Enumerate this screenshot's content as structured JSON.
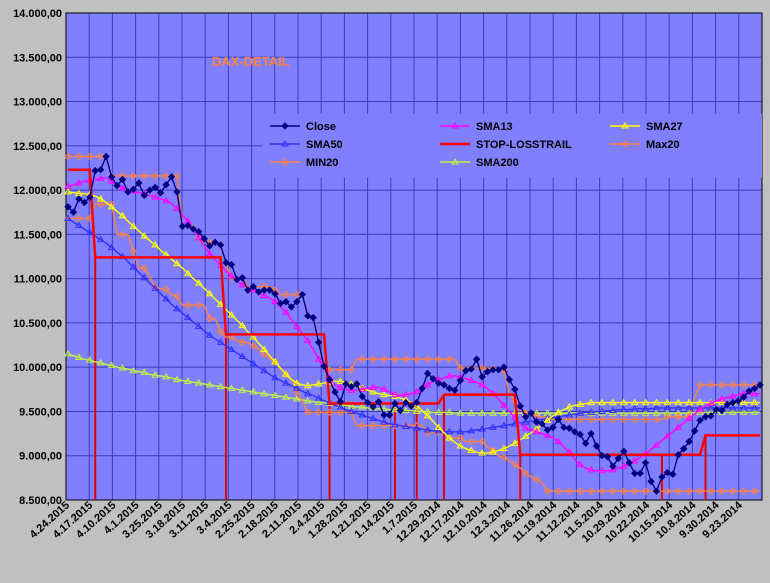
{
  "chart_data": {
    "type": "line",
    "title": "DAX-DETAIL",
    "colors": {
      "plot_bg": "#8080ff",
      "grid": "#3b3bbd",
      "outer_bg": "#c0c0c0",
      "title": "#ff8040"
    },
    "ylim": [
      8500,
      14000
    ],
    "yticks": [
      "8.500,00",
      "9.000,00",
      "9.500,00",
      "10.000,00",
      "10.500,00",
      "11.000,00",
      "11.500,00",
      "12.000,00",
      "12.500,00",
      "13.000,00",
      "13.500,00",
      "14.000,00"
    ],
    "ytick_values": [
      8500,
      9000,
      9500,
      10000,
      10500,
      11000,
      11500,
      12000,
      12500,
      13000,
      13500,
      14000
    ],
    "x_labels": [
      "4.24.2015",
      "4.17.2015",
      "4.10.2015",
      "4.1.2015",
      "3.25.2015",
      "3.18.2015",
      "3.11.2015",
      "3.4.2015",
      "2.25.2015",
      "2.18.2015",
      "2.11.2015",
      "2.4.2015",
      "1.28.2015",
      "1.21.2015",
      "1.14.2015",
      "1.7.2015",
      "12.29.2014",
      "12.17.2014",
      "12.10.2014",
      "12.3.2014",
      "11.26.2014",
      "11.19.2014",
      "11.12.2014",
      "11.5.2014",
      "10.29.2014",
      "10.22.2014",
      "10.15.2014",
      "10.8.2014",
      "9.30.2014",
      "9.23.2014"
    ],
    "legend_placement": "upper-right, inside plot",
    "series": [
      {
        "name": "Close",
        "color": "#000080",
        "marker": "diamond-filled",
        "values": [
          11810,
          11750,
          11900,
          11860,
          11920,
          12220,
          12230,
          12380,
          12150,
          12050,
          12120,
          11980,
          12010,
          12080,
          11940,
          12000,
          12030,
          11970,
          12060,
          12150,
          11980,
          11590,
          11600,
          11560,
          11530,
          11450,
          11370,
          11410,
          11380,
          11180,
          11160,
          10990,
          11010,
          10870,
          10910,
          10850,
          10870,
          10870,
          10830,
          10720,
          10740,
          10680,
          10740,
          10820,
          10580,
          10560,
          10280,
          10010,
          9860,
          9720,
          9610,
          9810,
          9780,
          9810,
          9670,
          9600,
          9550,
          9610,
          9460,
          9460,
          9590,
          9510,
          9600,
          9560,
          9600,
          9760,
          9930,
          9870,
          9820,
          9800,
          9760,
          9740,
          9850,
          9960,
          9980,
          10090,
          9890,
          9950,
          9970,
          9970,
          10000,
          9860,
          9750,
          9560,
          9440,
          9480,
          9380,
          9360,
          9290,
          9320,
          9410,
          9320,
          9310,
          9270,
          9240,
          9140,
          9250,
          9110,
          9000,
          8990,
          8880,
          8970,
          9050,
          8920,
          8800,
          8800,
          8920,
          8710,
          8600,
          8760,
          8810,
          8790,
          9010,
          9080,
          9160,
          9280,
          9400,
          9440,
          9450,
          9520,
          9510,
          9580,
          9600,
          9620,
          9660,
          9730,
          9760,
          9800
        ]
      },
      {
        "name": "SMA13",
        "color": "#ff00ff",
        "marker": "triangle-open",
        "values": [
          12040,
          12060,
          12080,
          12100,
          12110,
          12120,
          12130,
          12140,
          12100,
          12060,
          12020,
          12000,
          11990,
          11970,
          11960,
          11940,
          11920,
          11900,
          11880,
          11850,
          11790,
          11720,
          11650,
          11560,
          11460,
          11370,
          11280,
          11210,
          11150,
          11090,
          11030,
          10970,
          10930,
          10900,
          10870,
          10840,
          10810,
          10780,
          10740,
          10680,
          10620,
          10540,
          10460,
          10380,
          10300,
          10200,
          10090,
          9980,
          9880,
          9800,
          9770,
          9750,
          9740,
          9740,
          9750,
          9760,
          9770,
          9770,
          9750,
          9720,
          9690,
          9680,
          9690,
          9700,
          9720,
          9760,
          9800,
          9840,
          9860,
          9880,
          9900,
          9900,
          9890,
          9870,
          9850,
          9830,
          9800,
          9760,
          9700,
          9640,
          9570,
          9500,
          9430,
          9360,
          9310,
          9290,
          9270,
          9250,
          9230,
          9200,
          9160,
          9100,
          9040,
          8960,
          8900,
          8860,
          8840,
          8830,
          8830,
          8830,
          8840,
          8860,
          8880,
          8910,
          8940,
          8980,
          9020,
          9070,
          9120,
          9170,
          9220,
          9270,
          9320,
          9370,
          9420,
          9470,
          9520,
          9560,
          9590,
          9620,
          9640,
          9660,
          9670,
          9690,
          9700,
          9700,
          9700,
          9700
        ]
      },
      {
        "name": "SMA27",
        "color": "#ffff00",
        "marker": "triangle-open",
        "values": [
          11980,
          11970,
          11960,
          11960,
          11950,
          11930,
          11900,
          11860,
          11810,
          11760,
          11710,
          11650,
          11590,
          11540,
          11480,
          11430,
          11380,
          11320,
          11270,
          11220,
          11170,
          11120,
          11060,
          11000,
          10950,
          10890,
          10830,
          10770,
          10710,
          10650,
          10590,
          10530,
          10470,
          10400,
          10340,
          10270,
          10200,
          10130,
          10060,
          9990,
          9920,
          9860,
          9820,
          9800,
          9790,
          9800,
          9810,
          9820,
          9830,
          9840,
          9840,
          9830,
          9810,
          9790,
          9760,
          9740,
          9720,
          9700,
          9690,
          9680,
          9670,
          9650,
          9630,
          9600,
          9560,
          9510,
          9450,
          9390,
          9320,
          9260,
          9200,
          9150,
          9110,
          9080,
          9060,
          9040,
          9030,
          9030,
          9040,
          9060,
          9080,
          9110,
          9140,
          9180,
          9220,
          9260,
          9300,
          9350,
          9400,
          9450,
          9490,
          9520,
          9550,
          9570,
          9580,
          9590,
          9600,
          9600,
          9600,
          9600,
          9600,
          9600,
          9600,
          9600,
          9600,
          9600,
          9600,
          9600,
          9600,
          9600,
          9600,
          9600,
          9600,
          9600,
          9600,
          9600,
          9600,
          9600,
          9600,
          9600,
          9600,
          9600,
          9600,
          9600,
          9600,
          9600,
          9600,
          9600
        ]
      },
      {
        "name": "SMA50",
        "color": "#3030ff",
        "marker": "triangle-open",
        "values": [
          11680,
          11640,
          11600,
          11560,
          11520,
          11480,
          11440,
          11400,
          11350,
          11300,
          11250,
          11190,
          11130,
          11070,
          11010,
          10950,
          10890,
          10830,
          10770,
          10710,
          10660,
          10610,
          10560,
          10510,
          10460,
          10410,
          10360,
          10320,
          10280,
          10240,
          10200,
          10160,
          10120,
          10080,
          10040,
          10000,
          9960,
          9920,
          9880,
          9850,
          9820,
          9790,
          9760,
          9730,
          9700,
          9680,
          9650,
          9620,
          9600,
          9570,
          9550,
          9520,
          9500,
          9480,
          9460,
          9440,
          9420,
          9400,
          9380,
          9360,
          9350,
          9340,
          9330,
          9320,
          9310,
          9300,
          9290,
          9280,
          9280,
          9270,
          9270,
          9270,
          9270,
          9270,
          9280,
          9290,
          9300,
          9310,
          9320,
          9330,
          9340,
          9350,
          9360,
          9370,
          9380,
          9390,
          9400,
          9410,
          9420,
          9430,
          9440,
          9450,
          9460,
          9470,
          9480,
          9490,
          9490,
          9500,
          9500,
          9510,
          9510,
          9520,
          9520,
          9520,
          9530,
          9530,
          9530,
          9530,
          9540,
          9540,
          9540,
          9540,
          9540,
          9540,
          9540,
          9540,
          9540,
          9540,
          9540,
          9540,
          9540,
          9540,
          9540,
          9540,
          9540,
          9540,
          9540,
          9540
        ]
      },
      {
        "name": "STOP-LOSSTRAIL",
        "color": "#ff0000",
        "marker": "none",
        "values": [
          12230,
          12230,
          12230,
          12230,
          12230,
          11240,
          11240,
          11240,
          11240,
          11240,
          11240,
          11240,
          11240,
          11240,
          11240,
          11240,
          11240,
          11240,
          11240,
          11240,
          11240,
          11240,
          11240,
          11240,
          11240,
          11240,
          11240,
          11240,
          11240,
          10370,
          10370,
          10370,
          10370,
          10370,
          10370,
          10370,
          10370,
          10370,
          10370,
          10370,
          10370,
          10370,
          10370,
          10370,
          10370,
          10370,
          10370,
          10370,
          9590,
          9590,
          9590,
          9590,
          9590,
          9590,
          9590,
          9590,
          9590,
          9590,
          9590,
          9590,
          9590,
          9590,
          9590,
          9590,
          9590,
          9590,
          9590,
          9590,
          9590,
          9690,
          9690,
          9690,
          9690,
          9690,
          9690,
          9690,
          9690,
          9690,
          9690,
          9690,
          9690,
          9690,
          9690,
          9010,
          9010,
          9010,
          9010,
          9010,
          9010,
          9010,
          9010,
          9010,
          9010,
          9010,
          9010,
          9010,
          9010,
          9010,
          9010,
          9010,
          9010,
          9010,
          9010,
          9010,
          9010,
          9010,
          9010,
          9010,
          9010,
          9010,
          9010,
          9010,
          9010,
          9010,
          9010,
          9010,
          9010,
          9230,
          9230,
          9230,
          9230,
          9230,
          9230,
          9230,
          9230,
          9230,
          9230,
          9230
        ]
      },
      {
        "name": "Max20",
        "color": "#ff8040",
        "marker": "diamond-open",
        "values": [
          12380,
          12380,
          12380,
          12380,
          12380,
          12380,
          12380,
          12380,
          12160,
          12160,
          12160,
          12160,
          12160,
          12160,
          12160,
          12160,
          12160,
          12160,
          12160,
          12160,
          12160,
          11600,
          11600,
          11600,
          11460,
          11410,
          11410,
          11410,
          11380,
          11160,
          11010,
          11010,
          11010,
          10910,
          10910,
          10910,
          10910,
          10910,
          10870,
          10820,
          10820,
          10820,
          10820,
          10820,
          10580,
          10580,
          10280,
          10010,
          9970,
          9970,
          9970,
          9970,
          9970,
          10090,
          10090,
          10090,
          10090,
          10090,
          10090,
          10090,
          10090,
          10090,
          10090,
          10090,
          10090,
          10090,
          10090,
          10090,
          10090,
          10090,
          10090,
          10090,
          9990,
          9990,
          9990,
          9990,
          9990,
          9990,
          9980,
          9980,
          9970,
          9700,
          9620,
          9520,
          9480,
          9480,
          9440,
          9440,
          9420,
          9410,
          9410,
          9410,
          9410,
          9410,
          9410,
          9410,
          9410,
          9410,
          9410,
          9410,
          9410,
          9410,
          9410,
          9410,
          9410,
          9410,
          9410,
          9410,
          9410,
          9410,
          9440,
          9440,
          9440,
          9440,
          9440,
          9660,
          9800,
          9800,
          9800,
          9800,
          9800,
          9800,
          9800,
          9800,
          9800,
          9800,
          9800,
          9800
        ]
      },
      {
        "name": "MIN20",
        "color": "#ff8040",
        "marker": "diamond-open",
        "values": [
          11680,
          11680,
          11680,
          11680,
          11680,
          11840,
          11840,
          11840,
          11840,
          11500,
          11500,
          11500,
          11310,
          11120,
          11120,
          11020,
          10900,
          10890,
          10880,
          10820,
          10800,
          10700,
          10700,
          10700,
          10700,
          10700,
          10550,
          10550,
          10400,
          10340,
          10340,
          10300,
          10280,
          10280,
          10240,
          10200,
          10150,
          10100,
          10060,
          9980,
          9920,
          9870,
          9720,
          9620,
          9490,
          9490,
          9490,
          9490,
          9490,
          9490,
          9490,
          9490,
          9490,
          9340,
          9340,
          9340,
          9340,
          9340,
          9340,
          9340,
          9340,
          9340,
          9340,
          9340,
          9340,
          9340,
          9260,
          9260,
          9260,
          9260,
          9200,
          9200,
          9200,
          9160,
          9160,
          9160,
          9160,
          9100,
          9060,
          9000,
          8980,
          8940,
          8900,
          8860,
          8800,
          8760,
          8730,
          8700,
          8600,
          8600,
          8600,
          8600,
          8600,
          8600,
          8600,
          8600,
          8600,
          8600,
          8600,
          8600,
          8600,
          8600,
          8600,
          8600,
          8600,
          8600,
          8600,
          8600,
          8600,
          8600,
          8600,
          8600,
          8600,
          8600,
          8600,
          8600,
          8600,
          8600,
          8600,
          8600,
          8600,
          8600,
          8600,
          8600,
          8600,
          8600,
          8600,
          8600
        ]
      },
      {
        "name": "SMA200",
        "color": "#c0f040",
        "marker": "triangle-open",
        "values": [
          10150,
          10130,
          10110,
          10090,
          10080,
          10060,
          10050,
          10030,
          10020,
          10000,
          9990,
          9980,
          9960,
          9950,
          9940,
          9920,
          9910,
          9900,
          9890,
          9880,
          9860,
          9850,
          9840,
          9830,
          9820,
          9810,
          9800,
          9790,
          9780,
          9770,
          9760,
          9750,
          9740,
          9730,
          9720,
          9710,
          9700,
          9690,
          9680,
          9670,
          9660,
          9650,
          9640,
          9630,
          9620,
          9610,
          9600,
          9600,
          9590,
          9580,
          9570,
          9570,
          9560,
          9550,
          9550,
          9540,
          9540,
          9530,
          9530,
          9520,
          9520,
          9510,
          9510,
          9510,
          9500,
          9500,
          9500,
          9490,
          9490,
          9490,
          9490,
          9480,
          9480,
          9480,
          9480,
          9480,
          9480,
          9480,
          9480,
          9480,
          9480,
          9480,
          9480,
          9480,
          9480,
          9480,
          9480,
          9480,
          9480,
          9480,
          9480,
          9480,
          9480,
          9480,
          9480,
          9480,
          9480,
          9480,
          9480,
          9480,
          9480,
          9480,
          9480,
          9480,
          9480,
          9480,
          9480,
          9480,
          9480,
          9480,
          9480,
          9480,
          9480,
          9480,
          9480,
          9490,
          9490,
          9490,
          9490,
          9490,
          9490,
          9490,
          9490,
          9490,
          9490,
          9490,
          9490,
          9490
        ]
      }
    ],
    "stop_signals": [
      {
        "index": 5,
        "label": ""
      },
      {
        "index": 29,
        "label": ""
      },
      {
        "index": 48,
        "label": ""
      },
      {
        "index": 60,
        "label": ""
      },
      {
        "index": 64,
        "label": ""
      },
      {
        "index": 69,
        "label": ""
      },
      {
        "index": 83,
        "label": ""
      },
      {
        "index": 109,
        "label": ""
      },
      {
        "index": 117,
        "label": ""
      }
    ]
  }
}
